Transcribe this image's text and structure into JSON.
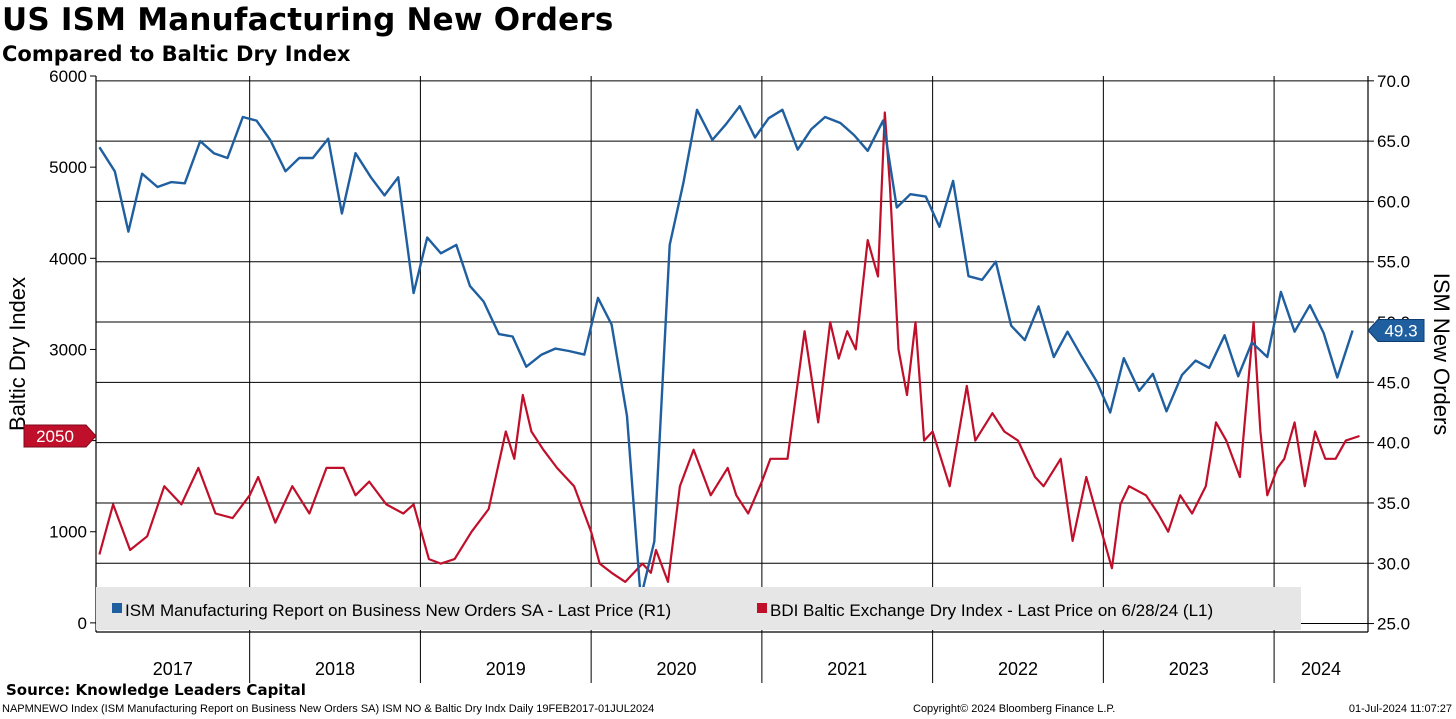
{
  "header": {
    "title": "US ISM Manufacturing New Orders",
    "subtitle": "Compared to Baltic Dry Index"
  },
  "source": "Source: Knowledge Leaders Capital",
  "footer": {
    "left": "NAPMNEWO Index (ISM Manufacturing Report on Business New Orders SA) ISM NO & Baltic Dry Indx  Daily 19FEB2017-01JUL2024",
    "center": "Copyright© 2024 Bloomberg Finance L.P.",
    "right": "01-Jul-2024 11:07:27"
  },
  "colors": {
    "ism": "#1f5fa0",
    "bdi": "#c00f2a",
    "legend_bg": "#e6e6e6"
  },
  "chart_data": {
    "type": "line",
    "title": "US ISM Manufacturing New Orders",
    "subtitle": "Compared to Baltic Dry Index",
    "x_range": [
      2017.1,
      2024.55
    ],
    "x_ticks": [
      "2017",
      "2018",
      "2019",
      "2020",
      "2021",
      "2022",
      "2023",
      "2024"
    ],
    "left_axis": {
      "label": "Baltic Dry Index",
      "range": [
        -100,
        6000
      ],
      "ticks": [
        "0",
        "1000",
        "2000",
        "3000",
        "4000",
        "5000",
        "6000"
      ]
    },
    "right_axis": {
      "label": "ISM New Orders",
      "range": [
        24.3,
        70.4
      ],
      "ticks": [
        "25.0",
        "30.0",
        "35.0",
        "40.0",
        "45.0",
        "50.0",
        "55.0",
        "60.0",
        "65.0",
        "70.0"
      ]
    },
    "grid": true,
    "legend": "bottom",
    "series": [
      {
        "name": "ISM Manufacturing Report on Business New Orders SA - Last Price (R1)",
        "axis": "right",
        "last_value_label": "49.3",
        "x": [
          2017.12,
          2017.21,
          2017.29,
          2017.37,
          2017.46,
          2017.54,
          2017.62,
          2017.71,
          2017.79,
          2017.87,
          2017.96,
          2018.04,
          2018.12,
          2018.21,
          2018.29,
          2018.37,
          2018.46,
          2018.54,
          2018.62,
          2018.71,
          2018.79,
          2018.87,
          2018.96,
          2019.04,
          2019.12,
          2019.21,
          2019.29,
          2019.37,
          2019.46,
          2019.54,
          2019.62,
          2019.71,
          2019.79,
          2019.87,
          2019.96,
          2020.04,
          2020.12,
          2020.21,
          2020.29,
          2020.37,
          2020.46,
          2020.54,
          2020.62,
          2020.71,
          2020.79,
          2020.87,
          2020.96,
          2021.04,
          2021.12,
          2021.21,
          2021.29,
          2021.37,
          2021.46,
          2021.54,
          2021.62,
          2021.71,
          2021.79,
          2021.87,
          2021.96,
          2022.04,
          2022.12,
          2022.21,
          2022.29,
          2022.37,
          2022.46,
          2022.54,
          2022.62,
          2022.71,
          2022.79,
          2022.87,
          2022.96,
          2023.04,
          2023.12,
          2023.21,
          2023.29,
          2023.37,
          2023.46,
          2023.54,
          2023.62,
          2023.71,
          2023.79,
          2023.87,
          2023.96,
          2024.04,
          2024.12,
          2024.21,
          2024.29,
          2024.37,
          2024.46
        ],
        "y": [
          64.5,
          62.5,
          57.5,
          62.3,
          61.2,
          61.6,
          61.5,
          65.0,
          64.0,
          63.6,
          67.0,
          66.7,
          65.1,
          62.5,
          63.6,
          63.6,
          65.2,
          59.0,
          64.0,
          62.0,
          60.5,
          62.0,
          52.4,
          57.0,
          55.7,
          56.4,
          53.0,
          51.7,
          49.0,
          48.8,
          46.3,
          47.3,
          47.8,
          47.6,
          47.3,
          52.0,
          49.8,
          42.2,
          27.1,
          31.8,
          56.4,
          61.5,
          67.6,
          65.1,
          66.4,
          67.9,
          65.3,
          66.9,
          67.6,
          64.3,
          66.0,
          67.0,
          66.5,
          65.5,
          64.2,
          66.7,
          59.5,
          60.6,
          60.4,
          57.9,
          61.7,
          53.8,
          53.5,
          55.0,
          49.7,
          48.5,
          51.3,
          47.1,
          49.2,
          47.2,
          45.1,
          42.5,
          47.0,
          44.3,
          45.7,
          42.6,
          45.6,
          46.8,
          46.2,
          48.9,
          45.5,
          48.3,
          47.1,
          52.5,
          49.2,
          51.4,
          49.1,
          45.4,
          49.3
        ]
      },
      {
        "name": "BDI Baltic Exchange Dry Index - Last Price on 6/28/24 (L1)",
        "axis": "left",
        "last_value_label": "2050",
        "x": [
          2017.12,
          2017.2,
          2017.3,
          2017.4,
          2017.5,
          2017.6,
          2017.7,
          2017.8,
          2017.9,
          2018.0,
          2018.05,
          2018.15,
          2018.25,
          2018.35,
          2018.45,
          2018.55,
          2018.62,
          2018.7,
          2018.8,
          2018.9,
          2018.96,
          2019.05,
          2019.12,
          2019.2,
          2019.3,
          2019.4,
          2019.5,
          2019.55,
          2019.6,
          2019.65,
          2019.72,
          2019.8,
          2019.9,
          2020.0,
          2020.05,
          2020.12,
          2020.2,
          2020.3,
          2020.35,
          2020.38,
          2020.45,
          2020.52,
          2020.6,
          2020.7,
          2020.8,
          2020.85,
          2020.92,
          2021.0,
          2021.05,
          2021.15,
          2021.25,
          2021.33,
          2021.4,
          2021.45,
          2021.5,
          2021.55,
          2021.62,
          2021.68,
          2021.72,
          2021.75,
          2021.8,
          2021.85,
          2021.9,
          2021.95,
          2022.0,
          2022.1,
          2022.2,
          2022.25,
          2022.35,
          2022.42,
          2022.5,
          2022.6,
          2022.65,
          2022.75,
          2022.82,
          2022.9,
          2022.96,
          2023.05,
          2023.1,
          2023.15,
          2023.25,
          2023.32,
          2023.38,
          2023.45,
          2023.52,
          2023.6,
          2023.66,
          2023.72,
          2023.8,
          2023.88,
          2023.92,
          2023.96,
          2024.02,
          2024.06,
          2024.12,
          2024.18,
          2024.24,
          2024.3,
          2024.36,
          2024.42,
          2024.5
        ],
        "y": [
          750,
          1300,
          800,
          950,
          1500,
          1300,
          1700,
          1200,
          1150,
          1400,
          1600,
          1100,
          1500,
          1200,
          1700,
          1700,
          1400,
          1550,
          1300,
          1200,
          1300,
          700,
          650,
          700,
          1000,
          1250,
          2100,
          1800,
          2500,
          2100,
          1900,
          1700,
          1500,
          1000,
          650,
          550,
          450,
          650,
          550,
          800,
          450,
          1500,
          1900,
          1400,
          1700,
          1400,
          1200,
          1550,
          1800,
          1800,
          3200,
          2200,
          3300,
          2900,
          3200,
          3000,
          4200,
          3800,
          5600,
          4800,
          3000,
          2500,
          3300,
          2000,
          2100,
          1500,
          2600,
          2000,
          2300,
          2100,
          2000,
          1600,
          1500,
          1800,
          900,
          1600,
          1200,
          600,
          1300,
          1500,
          1400,
          1200,
          1000,
          1400,
          1200,
          1500,
          2200,
          2000,
          1600,
          3300,
          2100,
          1400,
          1700,
          1800,
          2200,
          1500,
          2100,
          1800,
          1800,
          2000,
          2050
        ]
      }
    ]
  }
}
